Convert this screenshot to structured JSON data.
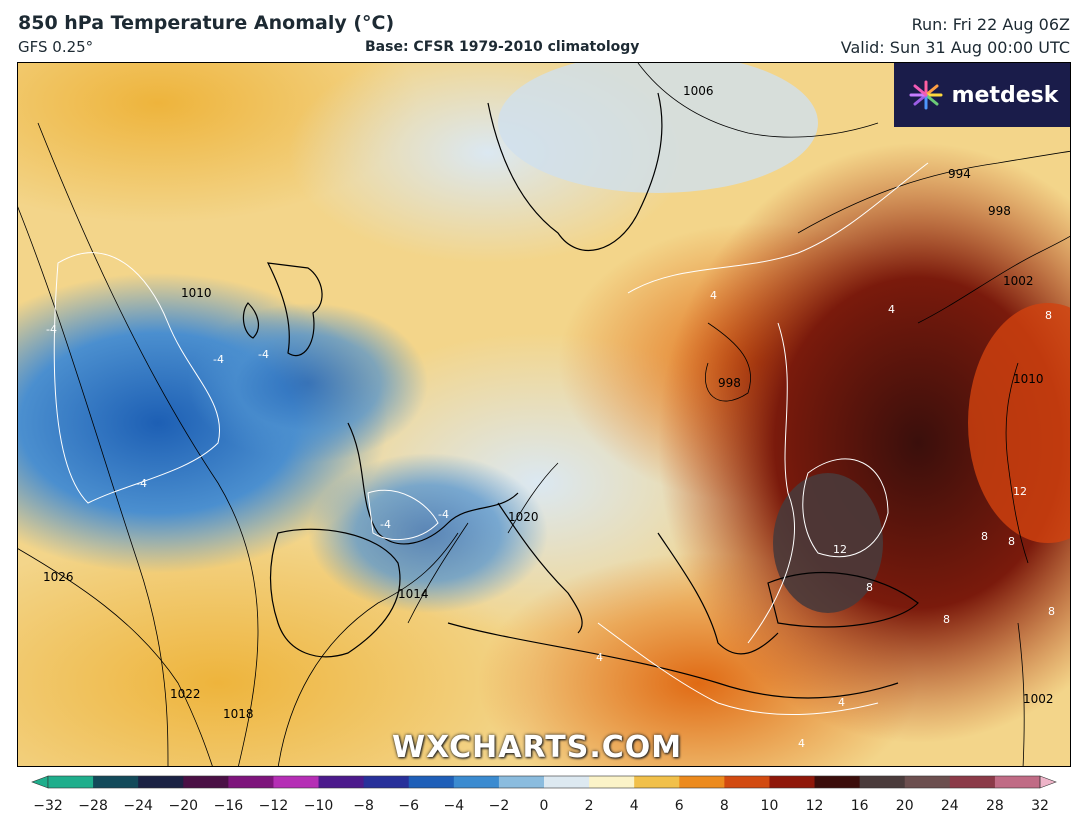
{
  "header": {
    "title": "850 hPa Temperature Anomaly (°C)",
    "model": "GFS 0.25°",
    "base": "Base: CFSR 1979-2010 climatology",
    "run": "Run: Fri 22 Aug 06Z",
    "valid": "Valid: Sun 31 Aug 00:00 UTC"
  },
  "logo": {
    "text": "metdesk",
    "icon": "starburst-icon"
  },
  "watermark": "WXCHARTS.COM",
  "isobar_labels": [
    "1006",
    "994",
    "998",
    "1002",
    "1010",
    "998",
    "1010",
    "1026",
    "1014",
    "1020",
    "1022",
    "1018",
    "1002"
  ],
  "anomaly_labels": [
    "-4",
    "-4",
    "-4",
    "-4",
    "-4",
    "-4",
    "4",
    "4",
    "4",
    "4",
    "4",
    "8",
    "8",
    "8",
    "8",
    "8",
    "8",
    "12",
    "12"
  ],
  "colorbar": {
    "ticks": [
      "−32",
      "−28",
      "−24",
      "−20",
      "−16",
      "−12",
      "−10",
      "−8",
      "−6",
      "−4",
      "−2",
      "0",
      "2",
      "4",
      "6",
      "8",
      "10",
      "12",
      "16",
      "20",
      "24",
      "28",
      "32"
    ],
    "colors": [
      "#1fae8c",
      "#134a5a",
      "#1b2244",
      "#4a1045",
      "#7e157c",
      "#b52eb5",
      "#4c1a8c",
      "#28309a",
      "#1f5fb8",
      "#3b8bd0",
      "#8bbcde",
      "#dde9f1",
      "#fbf3c8",
      "#f1c04a",
      "#ec8a1d",
      "#d24a10",
      "#8f1709",
      "#3b0d0b",
      "#4a3b3b",
      "#6c4f4f",
      "#8b3a48",
      "#c06b85",
      "#eeb4c8"
    ]
  }
}
